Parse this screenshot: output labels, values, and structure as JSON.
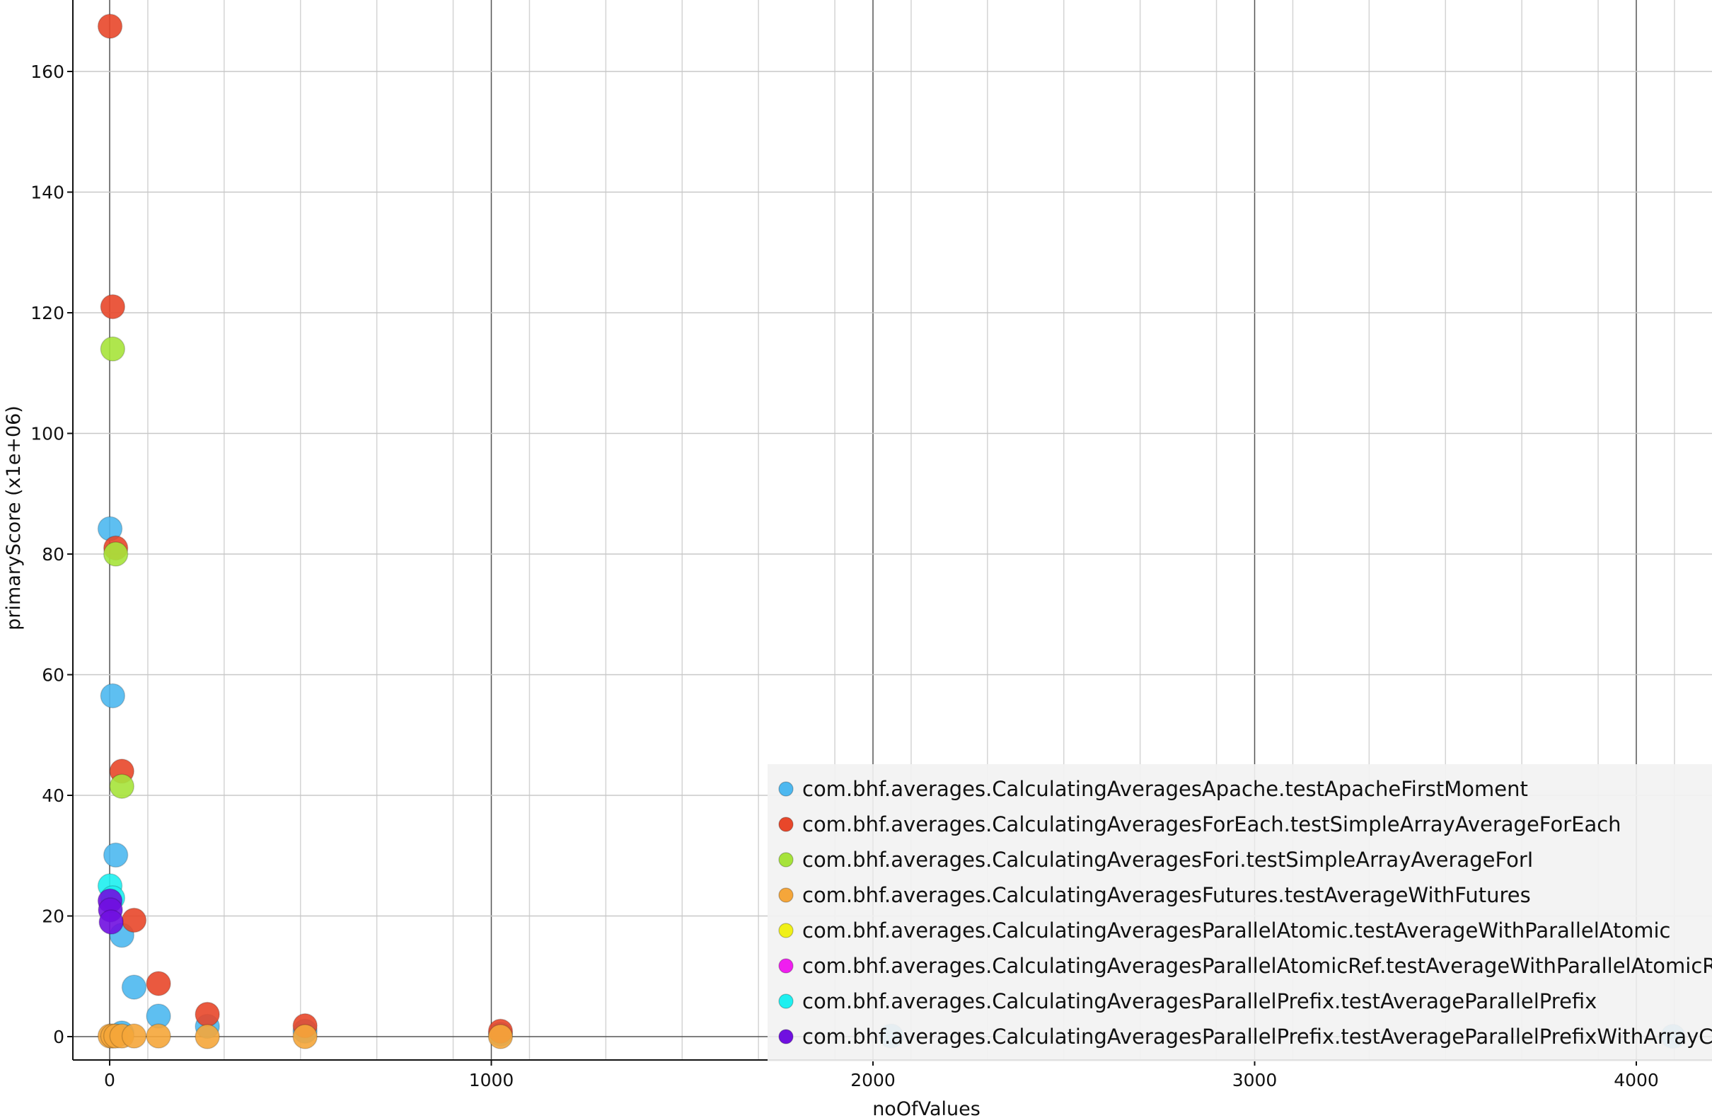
{
  "chart_data": {
    "type": "scatter",
    "xlabel": "noOfValues",
    "ylabel": "primaryScore (x1e+06)",
    "xlim": [
      -100,
      4200
    ],
    "ylim": [
      -4,
      171
    ],
    "x_major_ticks": [
      0,
      1000,
      2000,
      3000,
      4000
    ],
    "y_major_ticks": [
      0,
      20,
      40,
      60,
      80,
      100,
      120,
      140,
      160
    ],
    "grid": true,
    "legend_position": "bottom-right",
    "series": [
      {
        "name": "com.bhf.averages.CalculatingAveragesApache.testApacheFirstMoment",
        "color": "#4db8f0",
        "points": [
          {
            "x": 1,
            "y": 84.2
          },
          {
            "x": 8,
            "y": 56.5
          },
          {
            "x": 16,
            "y": 30.1
          },
          {
            "x": 32,
            "y": 16.8
          },
          {
            "x": 64,
            "y": 8.2
          },
          {
            "x": 128,
            "y": 3.4
          },
          {
            "x": 256,
            "y": 1.7
          },
          {
            "x": 512,
            "y": 0.9
          },
          {
            "x": 1024,
            "y": 0.4
          },
          {
            "x": 2048,
            "y": 0.1
          },
          {
            "x": 4096,
            "y": 0.05
          },
          {
            "x": 32,
            "y": 0.6
          }
        ]
      },
      {
        "name": "com.bhf.averages.CalculatingAveragesForEach.testSimpleArrayAverageForEach",
        "color": "#e8472a",
        "points": [
          {
            "x": 1,
            "y": 167.5
          },
          {
            "x": 8,
            "y": 121.0
          },
          {
            "x": 16,
            "y": 81.0
          },
          {
            "x": 32,
            "y": 44.0
          },
          {
            "x": 64,
            "y": 19.3
          },
          {
            "x": 128,
            "y": 8.8
          },
          {
            "x": 256,
            "y": 3.7
          },
          {
            "x": 512,
            "y": 1.8
          },
          {
            "x": 1024,
            "y": 0.9
          }
        ]
      },
      {
        "name": "com.bhf.averages.CalculatingAveragesFori.testSimpleArrayAverageForI",
        "color": "#a6e33a",
        "points": [
          {
            "x": 8,
            "y": 114.0
          },
          {
            "x": 16,
            "y": 80.0
          },
          {
            "x": 32,
            "y": 41.5
          }
        ]
      },
      {
        "name": "com.bhf.averages.CalculatingAveragesFutures.testAverageWithFutures",
        "color": "#f5a63a",
        "points": [
          {
            "x": 1,
            "y": 0.1
          },
          {
            "x": 8,
            "y": 0.1
          },
          {
            "x": 16,
            "y": 0.1
          },
          {
            "x": 32,
            "y": 0.1
          },
          {
            "x": 64,
            "y": 0.1
          },
          {
            "x": 128,
            "y": 0.1
          },
          {
            "x": 256,
            "y": 0.0
          },
          {
            "x": 512,
            "y": 0.0
          },
          {
            "x": 1024,
            "y": 0.0
          }
        ]
      },
      {
        "name": "com.bhf.averages.CalculatingAveragesParallelAtomic.testAverageWithParallelAtomic",
        "color": "#f0f018",
        "points": []
      },
      {
        "name": "com.bhf.averages.CalculatingAveragesParallelAtomicRef.testAverageWithParallelAtomicRef",
        "color": "#f01ef0",
        "points": []
      },
      {
        "name": "com.bhf.averages.CalculatingAveragesParallelPrefix.testAverageParallelPrefix",
        "color": "#1ef0f0",
        "points": [
          {
            "x": 1,
            "y": 25.0
          },
          {
            "x": 8,
            "y": 23.0
          }
        ]
      },
      {
        "name": "com.bhf.averages.CalculatingAveragesParallelPrefix.testAverageParallelPrefixWithArrayCopy",
        "color": "#7010e0",
        "points": [
          {
            "x": 1,
            "y": 22.5
          },
          {
            "x": 2,
            "y": 21.0
          },
          {
            "x": 4,
            "y": 19.0
          }
        ]
      }
    ]
  }
}
